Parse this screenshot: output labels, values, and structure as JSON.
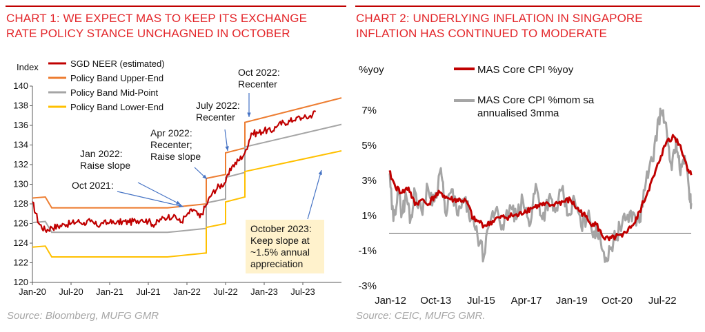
{
  "chart1": {
    "title_line1": "CHART 1: WE EXPECT MAS TO KEEP ITS EXCHANGE",
    "title_line2": "RATE POLICY STANCE UNCHAGNED IN OCTOBER",
    "source": "Source: Bloomberg, MUFG GMR",
    "colors": {
      "neer": "#c00000",
      "upper": "#ed7d31",
      "mid": "#a5a5a5",
      "lower": "#ffc000",
      "arrow": "#4472c4",
      "callout_bg": "#fff2cc"
    },
    "chart_data": {
      "type": "line",
      "ylabel": "Index",
      "ylim": [
        120,
        140
      ],
      "yticks": [
        "120",
        "122",
        "124",
        "126",
        "128",
        "130",
        "132",
        "134",
        "136",
        "138",
        "140"
      ],
      "xtick_labels": [
        "Jan-20",
        "Jul-20",
        "Jan-21",
        "Jul-21",
        "Jan-22",
        "Jul-22",
        "Jan-23",
        "Jul-23"
      ],
      "x_range": [
        "2020-01",
        "2024-01"
      ],
      "grid": false,
      "legend_position": "top-left",
      "series": [
        {
          "name": "SGD NEER (estimated)",
          "points": [
            [
              "2020-01",
              128.2
            ],
            [
              "2020-02",
              126.0
            ],
            [
              "2020-03",
              125.3
            ],
            [
              "2020-04",
              125.6
            ],
            [
              "2020-05",
              125.7
            ],
            [
              "2020-06",
              125.9
            ],
            [
              "2020-07",
              126.0
            ],
            [
              "2020-08",
              126.2
            ],
            [
              "2020-09",
              126.1
            ],
            [
              "2020-10",
              126.2
            ],
            [
              "2020-11",
              125.8
            ],
            [
              "2020-12",
              126.0
            ],
            [
              "2021-01",
              126.1
            ],
            [
              "2021-02",
              126.0
            ],
            [
              "2021-03",
              126.2
            ],
            [
              "2021-04",
              126.1
            ],
            [
              "2021-05",
              126.3
            ],
            [
              "2021-06",
              126.4
            ],
            [
              "2021-07",
              126.2
            ],
            [
              "2021-08",
              125.9
            ],
            [
              "2021-09",
              126.4
            ],
            [
              "2021-10",
              126.6
            ],
            [
              "2021-11",
              126.9
            ],
            [
              "2021-12",
              126.1
            ],
            [
              "2022-01",
              126.9
            ],
            [
              "2022-02",
              127.4
            ],
            [
              "2022-03",
              126.6
            ],
            [
              "2022-04",
              127.9
            ],
            [
              "2022-05",
              129.2
            ],
            [
              "2022-06",
              129.8
            ],
            [
              "2022-07",
              130.2
            ],
            [
              "2022-08",
              131.8
            ],
            [
              "2022-09",
              132.4
            ],
            [
              "2022-10",
              133.2
            ],
            [
              "2022-11",
              135.2
            ],
            [
              "2022-12",
              135.2
            ],
            [
              "2023-01",
              135.5
            ],
            [
              "2023-02",
              135.4
            ],
            [
              "2023-03",
              135.9
            ],
            [
              "2023-04",
              136.3
            ],
            [
              "2023-05",
              136.4
            ],
            [
              "2023-06",
              136.8
            ],
            [
              "2023-07",
              136.7
            ],
            [
              "2023-08",
              136.9
            ],
            [
              "2023-09",
              137.4
            ]
          ]
        },
        {
          "name": "Policy Band Upper-End",
          "points": [
            [
              "2020-01",
              128.6
            ],
            [
              "2020-03",
              128.7
            ],
            [
              "2020-04",
              127.6
            ],
            [
              "2021-10",
              127.6
            ],
            [
              "2022-01",
              127.8
            ],
            [
              "2022-04",
              128.0
            ],
            [
              "2022-04",
              130.6
            ],
            [
              "2022-07",
              131.0
            ],
            [
              "2022-07",
              133.2
            ],
            [
              "2022-10",
              133.7
            ],
            [
              "2022-10",
              136.3
            ],
            [
              "2024-01",
              138.8
            ]
          ]
        },
        {
          "name": "Policy Band Mid-Point",
          "points": [
            [
              "2020-01",
              126.1
            ],
            [
              "2020-03",
              126.2
            ],
            [
              "2020-04",
              125.1
            ],
            [
              "2021-10",
              125.1
            ],
            [
              "2022-01",
              125.3
            ],
            [
              "2022-04",
              125.5
            ],
            [
              "2022-04",
              128.1
            ],
            [
              "2022-07",
              128.5
            ],
            [
              "2022-07",
              130.7
            ],
            [
              "2022-10",
              131.2
            ],
            [
              "2022-10",
              133.8
            ],
            [
              "2024-01",
              136.1
            ]
          ]
        },
        {
          "name": "Policy Band Lower-End",
          "points": [
            [
              "2020-01",
              123.6
            ],
            [
              "2020-03",
              123.7
            ],
            [
              "2020-04",
              122.6
            ],
            [
              "2021-10",
              122.6
            ],
            [
              "2022-01",
              122.8
            ],
            [
              "2022-04",
              123.0
            ],
            [
              "2022-04",
              125.6
            ],
            [
              "2022-07",
              126.0
            ],
            [
              "2022-07",
              128.2
            ],
            [
              "2022-10",
              128.7
            ],
            [
              "2022-10",
              131.3
            ],
            [
              "2024-01",
              133.4
            ]
          ]
        }
      ],
      "annotations": [
        {
          "lines": [
            "Oct 2021:"
          ]
        },
        {
          "lines": [
            "Jan 2022:",
            "Raise slope"
          ]
        },
        {
          "lines": [
            "Apr 2022:",
            "Recenter;",
            "Raise slope"
          ]
        },
        {
          "lines": [
            "July 2022:",
            "Recenter"
          ]
        },
        {
          "lines": [
            "Oct 2022:",
            "Recenter"
          ]
        },
        {
          "lines": [
            "October 2023:",
            "Keep slope at",
            "~1.5% annual",
            "appreciation"
          ]
        }
      ]
    }
  },
  "chart2": {
    "title_line1": "CHART 2: UNDERLYING INFLATION IN SINGAPORE",
    "title_line2": "INFLATION HAS CONTINUED TO MODERATE",
    "source": "Source: CEIC, MUFG GMR.",
    "colors": {
      "core_yoy": "#c00000",
      "core_mom": "#a5a5a5"
    },
    "chart_data": {
      "type": "line",
      "ylabel": "%yoy",
      "ylim": [
        -3,
        7
      ],
      "yticks": [
        "-3%",
        "-1%",
        "1%",
        "3%",
        "5%",
        "7%"
      ],
      "xtick_labels": [
        "Jan-12",
        "Oct-13",
        "Jul-15",
        "Apr-17",
        "Jan-19",
        "Oct-20",
        "Jul-22"
      ],
      "x_range": [
        "2012-01",
        "2023-09"
      ],
      "grid": false,
      "legend_position": "top-left",
      "series": [
        {
          "name": "MAS Core CPI %yoy",
          "legend_lines": [
            "MAS Core CPI %yoy"
          ],
          "points": [
            [
              "2012-01",
              3.5
            ],
            [
              "2012-04",
              2.6
            ],
            [
              "2012-07",
              2.3
            ],
            [
              "2012-10",
              2.6
            ],
            [
              "2013-01",
              1.6
            ],
            [
              "2013-04",
              1.9
            ],
            [
              "2013-07",
              1.6
            ],
            [
              "2013-10",
              2.1
            ],
            [
              "2014-01",
              2.3
            ],
            [
              "2014-04",
              2.0
            ],
            [
              "2014-07",
              1.9
            ],
            [
              "2014-10",
              1.9
            ],
            [
              "2015-01",
              1.8
            ],
            [
              "2015-04",
              0.8
            ],
            [
              "2015-07",
              0.6
            ],
            [
              "2015-10",
              0.4
            ],
            [
              "2016-01",
              0.7
            ],
            [
              "2016-04",
              0.9
            ],
            [
              "2016-07",
              0.9
            ],
            [
              "2016-10",
              1.0
            ],
            [
              "2017-01",
              1.0
            ],
            [
              "2017-04",
              1.3
            ],
            [
              "2017-07",
              1.4
            ],
            [
              "2017-10",
              1.6
            ],
            [
              "2018-01",
              1.6
            ],
            [
              "2018-04",
              1.6
            ],
            [
              "2018-07",
              1.7
            ],
            [
              "2018-10",
              1.8
            ],
            [
              "2019-01",
              1.9
            ],
            [
              "2019-04",
              1.4
            ],
            [
              "2019-07",
              1.1
            ],
            [
              "2019-10",
              0.6
            ],
            [
              "2020-01",
              0.5
            ],
            [
              "2020-04",
              -0.2
            ],
            [
              "2020-07",
              -0.4
            ],
            [
              "2020-10",
              -0.2
            ],
            [
              "2021-01",
              -0.2
            ],
            [
              "2021-04",
              0.3
            ],
            [
              "2021-07",
              0.6
            ],
            [
              "2021-10",
              1.5
            ],
            [
              "2022-01",
              2.4
            ],
            [
              "2022-04",
              3.3
            ],
            [
              "2022-07",
              4.4
            ],
            [
              "2022-10",
              5.3
            ],
            [
              "2023-01",
              5.5
            ],
            [
              "2023-04",
              5.0
            ],
            [
              "2023-07",
              3.8
            ],
            [
              "2023-09",
              3.3
            ]
          ]
        },
        {
          "name": "MAS Core CPI %mom sa annualised 3mma",
          "legend_lines": [
            "MAS Core CPI %mom sa",
            "annualised 3mma"
          ],
          "points": [
            [
              "2012-01",
              3.4
            ],
            [
              "2012-03",
              0.7
            ],
            [
              "2012-05",
              2.4
            ],
            [
              "2012-07",
              1.2
            ],
            [
              "2012-09",
              2.1
            ],
            [
              "2012-11",
              0.8
            ],
            [
              "2013-01",
              2.4
            ],
            [
              "2013-04",
              1.3
            ],
            [
              "2013-07",
              2.6
            ],
            [
              "2013-10",
              1.8
            ],
            [
              "2014-01",
              3.7
            ],
            [
              "2014-03",
              1.2
            ],
            [
              "2014-06",
              2.5
            ],
            [
              "2014-09",
              1.0
            ],
            [
              "2014-12",
              2.0
            ],
            [
              "2015-03",
              0.8
            ],
            [
              "2015-06",
              -0.2
            ],
            [
              "2015-09",
              -1.3
            ],
            [
              "2015-12",
              0.7
            ],
            [
              "2016-03",
              1.5
            ],
            [
              "2016-06",
              0.2
            ],
            [
              "2016-09",
              1.6
            ],
            [
              "2016-12",
              0.8
            ],
            [
              "2017-03",
              1.9
            ],
            [
              "2017-06",
              0.4
            ],
            [
              "2017-09",
              2.8
            ],
            [
              "2017-12",
              0.8
            ],
            [
              "2018-03",
              2.0
            ],
            [
              "2018-06",
              1.2
            ],
            [
              "2018-09",
              2.5
            ],
            [
              "2018-12",
              1.0
            ],
            [
              "2019-03",
              1.9
            ],
            [
              "2019-06",
              0.4
            ],
            [
              "2019-09",
              1.0
            ],
            [
              "2019-12",
              0.1
            ],
            [
              "2020-03",
              -0.4
            ],
            [
              "2020-06",
              -1.6
            ],
            [
              "2020-09",
              -0.4
            ],
            [
              "2020-12",
              0.3
            ],
            [
              "2021-03",
              0.8
            ],
            [
              "2021-06",
              1.2
            ],
            [
              "2021-09",
              0.6
            ],
            [
              "2021-12",
              2.9
            ],
            [
              "2022-03",
              4.1
            ],
            [
              "2022-06",
              6.6
            ],
            [
              "2022-08",
              7.0
            ],
            [
              "2022-10",
              5.3
            ],
            [
              "2022-12",
              3.6
            ],
            [
              "2023-02",
              5.4
            ],
            [
              "2023-04",
              3.3
            ],
            [
              "2023-06",
              4.4
            ],
            [
              "2023-08",
              2.4
            ],
            [
              "2023-09",
              1.7
            ]
          ]
        }
      ]
    }
  }
}
